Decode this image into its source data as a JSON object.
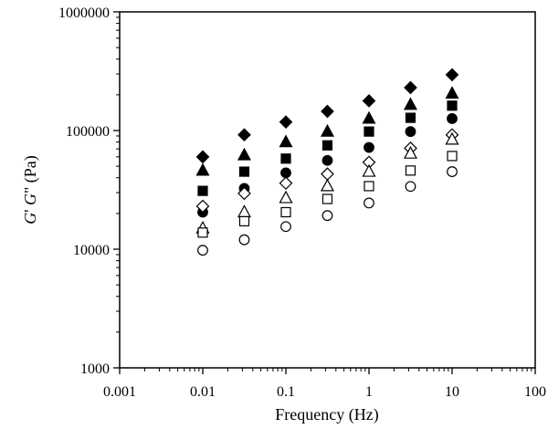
{
  "chart_data": {
    "type": "scatter",
    "title": "",
    "xlabel": "Frequency (Hz)",
    "ylabel": {
      "g1": "G",
      "p1": "'",
      "g2": " G",
      "p2": "\"",
      "unit": " (Pa)"
    },
    "x_scale": "log",
    "y_scale": "log",
    "xlim": [
      0.001,
      100
    ],
    "ylim": [
      1000,
      1000000
    ],
    "x_ticks": [
      0.001,
      0.01,
      0.1,
      1,
      10,
      100
    ],
    "x_tick_labels": [
      "0.001",
      "0.01",
      "0.1",
      "1",
      "10",
      "100"
    ],
    "y_ticks": [
      1000,
      10000,
      100000,
      1000000
    ],
    "y_tick_labels": [
      "1000",
      "10000",
      "100000",
      "1000000"
    ],
    "grid": false,
    "legend": "none",
    "x": [
      0.01,
      0.0316,
      0.1,
      0.316,
      1,
      3.16,
      10
    ],
    "series": [
      {
        "marker": "diamond",
        "filled": true,
        "values": [
          60000,
          92000,
          118000,
          145000,
          178000,
          230000,
          295000
        ]
      },
      {
        "marker": "triangle",
        "filled": true,
        "values": [
          46000,
          62000,
          80000,
          98000,
          126000,
          165000,
          205000
        ]
      },
      {
        "marker": "square",
        "filled": true,
        "values": [
          31000,
          45000,
          58000,
          75000,
          98000,
          128000,
          162000
        ]
      },
      {
        "marker": "circle",
        "filled": true,
        "values": [
          20500,
          32500,
          44000,
          56000,
          72000,
          98000,
          126000
        ]
      },
      {
        "marker": "diamond",
        "filled": false,
        "values": [
          23000,
          29500,
          36000,
          43000,
          54000,
          71000,
          92000
        ]
      },
      {
        "marker": "triangle",
        "filled": false,
        "values": [
          15000,
          20500,
          27000,
          34000,
          45000,
          64000,
          84000
        ]
      },
      {
        "marker": "square",
        "filled": false,
        "values": [
          13800,
          17200,
          20500,
          26500,
          34000,
          46000,
          61000
        ]
      },
      {
        "marker": "circle",
        "filled": false,
        "values": [
          9800,
          12000,
          15500,
          19200,
          24500,
          33800,
          45000
        ]
      }
    ]
  }
}
